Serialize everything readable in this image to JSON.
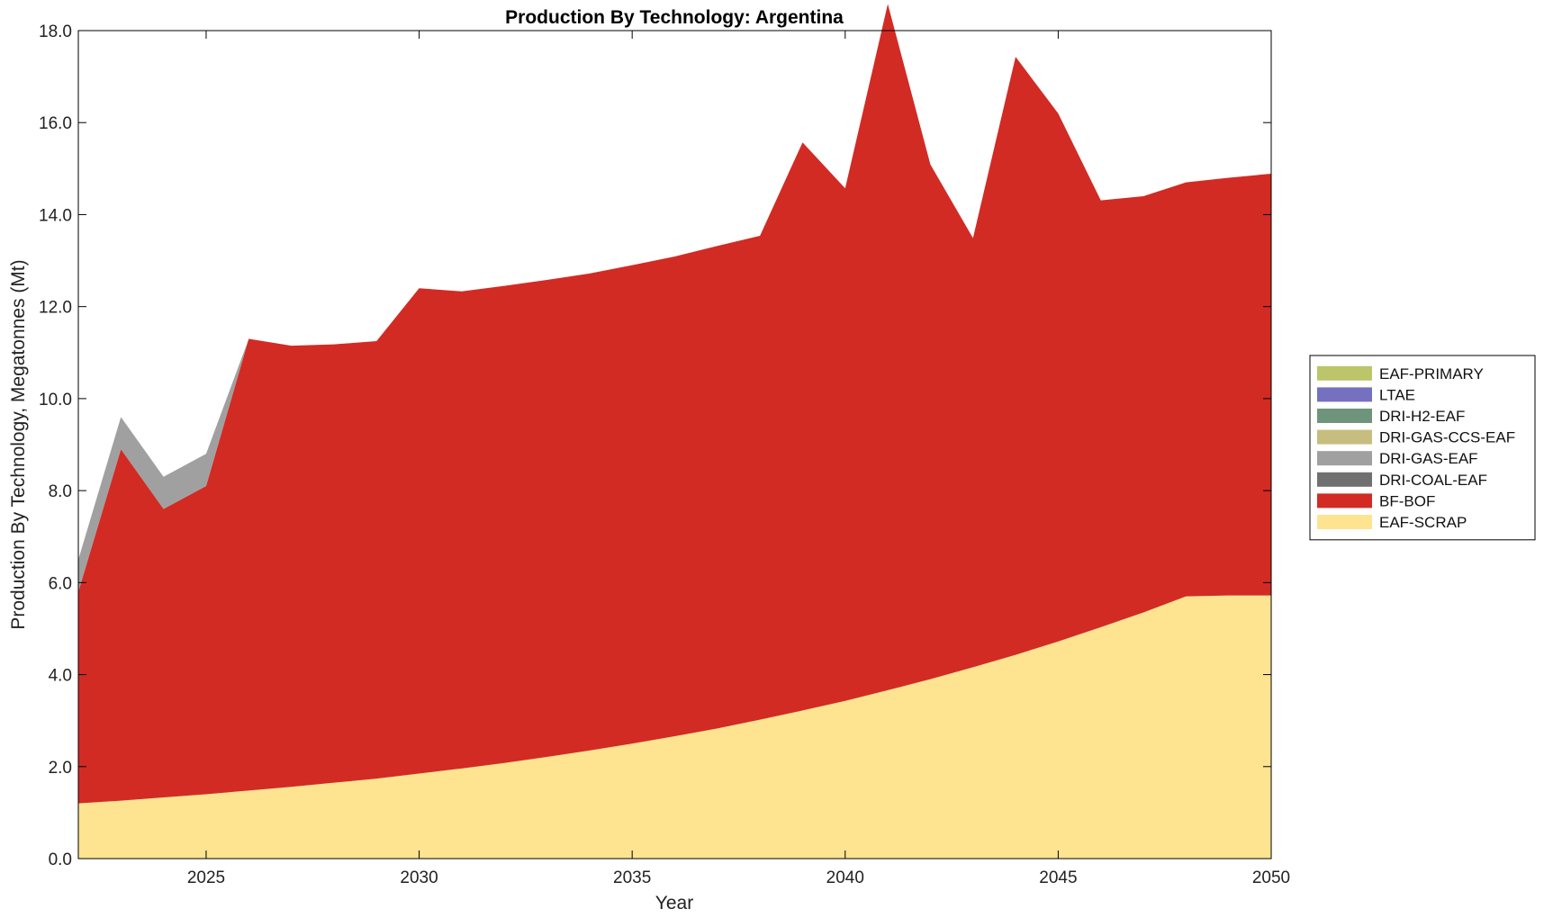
{
  "chart_data": {
    "type": "area",
    "stacked": true,
    "title": "Production By Technology: Argentina",
    "xlabel": "Year",
    "ylabel": "Production By Technology, Megatonnes (Mt)",
    "xlim": [
      2022,
      2050
    ],
    "ylim": [
      0,
      18
    ],
    "x_ticks": [
      2025,
      2030,
      2035,
      2040,
      2045,
      2050
    ],
    "y_ticks": [
      "0.0",
      "2.0",
      "4.0",
      "6.0",
      "8.0",
      "10.0",
      "12.0",
      "14.0",
      "16.0",
      "18.0"
    ],
    "legend_position": "right",
    "grid": false,
    "x": [
      2022,
      2023,
      2024,
      2025,
      2026,
      2027,
      2028,
      2029,
      2030,
      2031,
      2032,
      2033,
      2034,
      2035,
      2036,
      2037,
      2038,
      2039,
      2040,
      2041,
      2042,
      2043,
      2044,
      2045,
      2046,
      2047,
      2048,
      2049,
      2050
    ],
    "series": [
      {
        "name": "EAF-SCRAP",
        "color": "#fee391",
        "values": [
          1.2,
          1.26,
          1.33,
          1.4,
          1.48,
          1.56,
          1.65,
          1.74,
          1.85,
          1.96,
          2.08,
          2.21,
          2.35,
          2.5,
          2.66,
          2.83,
          3.02,
          3.22,
          3.43,
          3.66,
          3.9,
          4.16,
          4.43,
          4.72,
          5.03,
          5.35,
          5.7,
          5.72,
          5.72
        ]
      },
      {
        "name": "BF-BOF",
        "color": "#d22b24",
        "values": [
          4.6,
          7.64,
          6.27,
          6.7,
          9.82,
          9.59,
          9.53,
          9.51,
          10.55,
          10.37,
          10.37,
          10.37,
          10.37,
          10.4,
          10.43,
          10.49,
          10.52,
          12.35,
          11.14,
          14.92,
          11.19,
          9.33,
          13.0,
          11.48,
          9.28,
          9.05,
          9.0,
          9.08,
          9.17
        ]
      },
      {
        "name": "DRI-COAL-EAF",
        "color": "#707070",
        "values": [
          0,
          0,
          0,
          0,
          0,
          0,
          0,
          0,
          0,
          0,
          0,
          0,
          0,
          0,
          0,
          0,
          0,
          0,
          0,
          0,
          0,
          0,
          0,
          0,
          0,
          0,
          0,
          0,
          0
        ]
      },
      {
        "name": "DRI-GAS-EAF",
        "color": "#a0a0a0",
        "values": [
          0.7,
          0.7,
          0.7,
          0.7,
          0,
          0,
          0,
          0,
          0,
          0,
          0,
          0,
          0,
          0,
          0,
          0,
          0,
          0,
          0,
          0,
          0,
          0,
          0,
          0,
          0,
          0,
          0,
          0,
          0
        ]
      },
      {
        "name": "DRI-GAS-CCS-EAF",
        "color": "#c6bd7f",
        "values": [
          0,
          0,
          0,
          0,
          0,
          0,
          0,
          0,
          0,
          0,
          0,
          0,
          0,
          0,
          0,
          0,
          0,
          0,
          0,
          0,
          0,
          0,
          0,
          0,
          0,
          0,
          0,
          0,
          0
        ]
      },
      {
        "name": "DRI-H2-EAF",
        "color": "#6e957c",
        "values": [
          0,
          0,
          0,
          0,
          0,
          0,
          0,
          0,
          0,
          0,
          0,
          0,
          0,
          0,
          0,
          0,
          0,
          0,
          0,
          0,
          0,
          0,
          0,
          0,
          0,
          0,
          0,
          0,
          0
        ]
      },
      {
        "name": "LTAE",
        "color": "#7570c0",
        "values": [
          0,
          0,
          0,
          0,
          0,
          0,
          0,
          0,
          0,
          0,
          0,
          0,
          0,
          0,
          0,
          0,
          0,
          0,
          0,
          0,
          0,
          0,
          0,
          0,
          0,
          0,
          0,
          0,
          0
        ]
      },
      {
        "name": "EAF-PRIMARY",
        "color": "#bcc56a",
        "values": [
          0,
          0,
          0,
          0,
          0,
          0,
          0,
          0,
          0,
          0,
          0,
          0,
          0,
          0,
          0,
          0,
          0,
          0,
          0,
          0,
          0,
          0,
          0,
          0,
          0,
          0,
          0,
          0,
          0
        ]
      }
    ]
  }
}
